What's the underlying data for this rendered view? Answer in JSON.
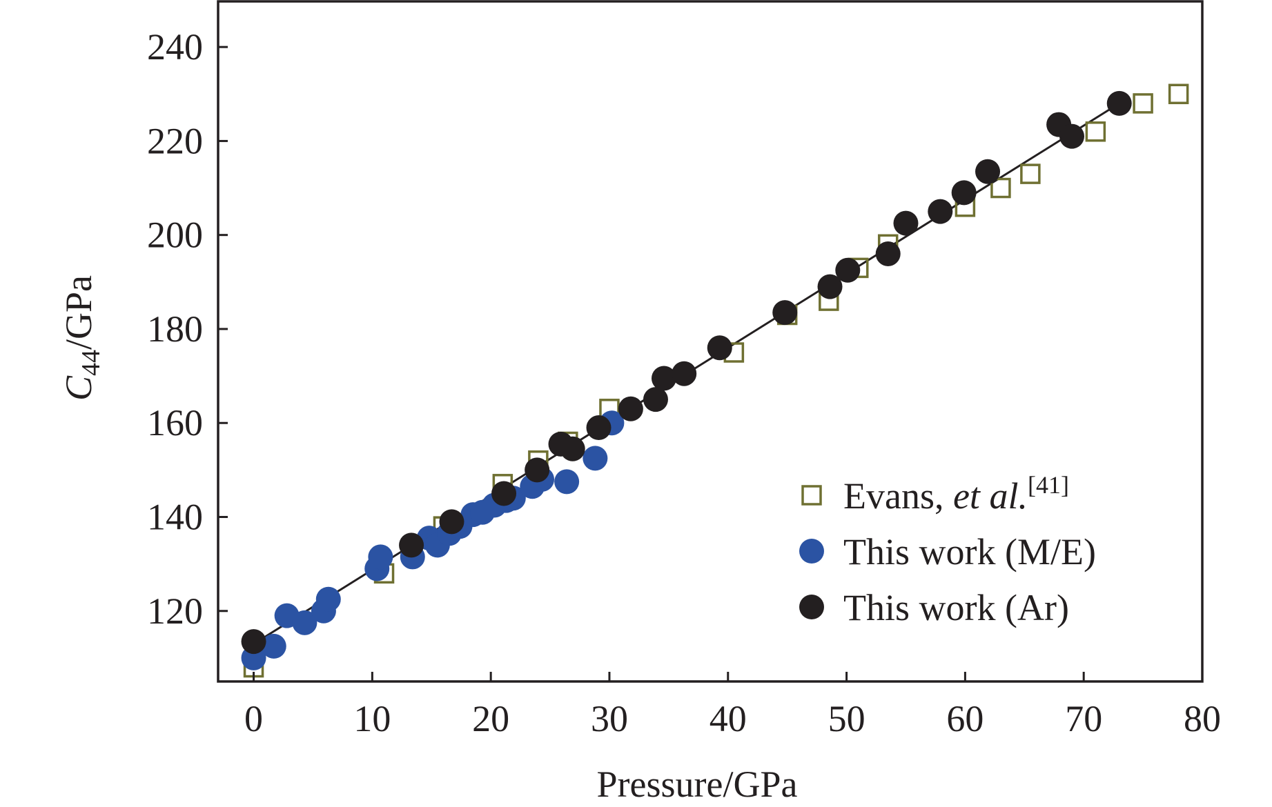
{
  "chart_data": {
    "type": "scatter",
    "title": "",
    "xlabel": "Pressure/GPa",
    "ylabel": {
      "main": "C",
      "sub": "44",
      "rest": "/GPa"
    },
    "xlim": [
      -3,
      80
    ],
    "ylim": [
      105,
      250
    ],
    "xticks": [
      0,
      10,
      20,
      30,
      40,
      50,
      60,
      70,
      80
    ],
    "yticks": [
      120,
      140,
      160,
      180,
      200,
      220,
      240
    ],
    "fit_line": {
      "x": [
        0,
        73
      ],
      "y": [
        113,
        228
      ],
      "color": "#231f20"
    },
    "legend_position": "lower-right",
    "series": [
      {
        "name": "Evans, et al.[41]",
        "legend_parts": {
          "pre": "Evans, ",
          "italic": "et al.",
          "sup": "[41]"
        },
        "marker": "open-square",
        "color": "#6f7032",
        "points": [
          [
            0,
            108
          ],
          [
            11,
            128
          ],
          [
            16,
            138
          ],
          [
            21,
            147
          ],
          [
            24,
            152
          ],
          [
            26.5,
            156
          ],
          [
            30,
            163
          ],
          [
            40.5,
            175
          ],
          [
            45,
            183
          ],
          [
            48.5,
            186
          ],
          [
            51,
            193
          ],
          [
            53.5,
            198
          ],
          [
            60,
            206
          ],
          [
            63,
            210
          ],
          [
            65.5,
            213
          ],
          [
            71,
            222
          ],
          [
            75,
            228
          ],
          [
            78,
            230
          ]
        ]
      },
      {
        "name": "This work (M/E)",
        "marker": "filled-circle",
        "color": "#2b53a3",
        "points": [
          [
            0,
            110
          ],
          [
            1.7,
            112.5
          ],
          [
            2.8,
            119
          ],
          [
            4.3,
            117.5
          ],
          [
            5.9,
            120
          ],
          [
            6.3,
            122.5
          ],
          [
            10.4,
            129
          ],
          [
            10.7,
            131.5
          ],
          [
            13.4,
            131.5
          ],
          [
            14.8,
            135.5
          ],
          [
            15.5,
            134
          ],
          [
            16.5,
            136.5
          ],
          [
            17.4,
            138
          ],
          [
            18.5,
            140.5
          ],
          [
            19.3,
            141
          ],
          [
            20.3,
            142.5
          ],
          [
            21.3,
            143.5
          ],
          [
            21.9,
            144
          ],
          [
            23.5,
            146.5
          ],
          [
            24.3,
            148
          ],
          [
            26.4,
            147.5
          ],
          [
            28.8,
            152.5
          ],
          [
            30.2,
            160
          ]
        ]
      },
      {
        "name": "This work (Ar)",
        "marker": "filled-circle",
        "color": "#231f20",
        "points": [
          [
            0,
            113.5
          ],
          [
            13.3,
            134
          ],
          [
            16.7,
            139
          ],
          [
            21.1,
            145
          ],
          [
            23.9,
            150
          ],
          [
            25.9,
            155.5
          ],
          [
            26.9,
            154.5
          ],
          [
            29.1,
            159
          ],
          [
            31.8,
            163
          ],
          [
            33.9,
            165
          ],
          [
            34.6,
            169.5
          ],
          [
            36.3,
            170.5
          ],
          [
            39.3,
            176
          ],
          [
            44.8,
            183.5
          ],
          [
            48.6,
            189
          ],
          [
            50.1,
            192.5
          ],
          [
            53.5,
            196
          ],
          [
            55,
            202.5
          ],
          [
            57.9,
            205
          ],
          [
            59.9,
            209
          ],
          [
            61.9,
            213.5
          ],
          [
            67.9,
            223.5
          ],
          [
            69,
            221
          ],
          [
            73,
            228
          ]
        ]
      }
    ]
  }
}
